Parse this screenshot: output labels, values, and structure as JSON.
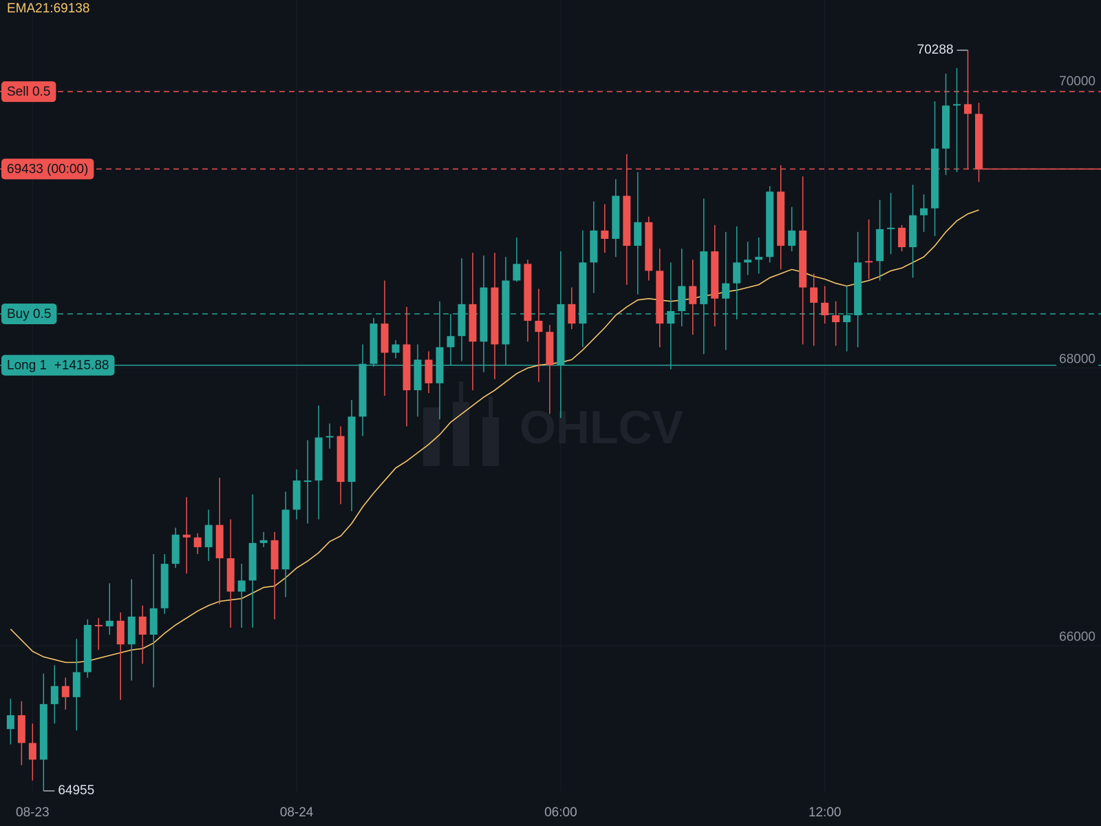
{
  "chart_data": {
    "type": "candlestick",
    "x": [
      0,
      1,
      2,
      3,
      4,
      5,
      6,
      7,
      8,
      9,
      10,
      11,
      12,
      13,
      14,
      15,
      16,
      17,
      18,
      19,
      20,
      21,
      22,
      23,
      24,
      25,
      26,
      27,
      28,
      29,
      30,
      31,
      32,
      33,
      34,
      35,
      36,
      37,
      38,
      39,
      40,
      41,
      42,
      43,
      44,
      45,
      46,
      47,
      48,
      49,
      50,
      51,
      52,
      53,
      54,
      55,
      56,
      57,
      58,
      59,
      60,
      61,
      62,
      63,
      64,
      65,
      66,
      67,
      68,
      69,
      70,
      71,
      72,
      73,
      74,
      75,
      76,
      77,
      78,
      79,
      80,
      81,
      82,
      83,
      84,
      85,
      86,
      87,
      88
    ],
    "open": [
      65400,
      65500,
      65300,
      65180,
      65580,
      65710,
      65630,
      65810,
      66150,
      66140,
      66180,
      66010,
      66210,
      66080,
      66270,
      66590,
      66800,
      66780,
      66710,
      66870,
      66630,
      66390,
      66470,
      66740,
      66760,
      66550,
      66980,
      67180,
      67190,
      67500,
      67510,
      67180,
      67650,
      68030,
      68320,
      68110,
      68170,
      67840,
      68060,
      67890,
      68150,
      68230,
      68460,
      68190,
      68580,
      68170,
      68630,
      68750,
      68340,
      68260,
      68020,
      68460,
      68320,
      68760,
      68990,
      68930,
      69240,
      68880,
      69050,
      68700,
      68320,
      68410,
      68590,
      68460,
      68840,
      68500,
      68610,
      68760,
      68780,
      68800,
      69270,
      68880,
      68990,
      68580,
      68470,
      68380,
      68330,
      68380,
      68770,
      68770,
      69000,
      69010,
      68870,
      69100,
      69150,
      69580,
      69890,
      69900,
      69830
    ],
    "high": [
      65620,
      65600,
      65440,
      65800,
      65860,
      65770,
      66050,
      66190,
      66200,
      66450,
      66240,
      66480,
      66290,
      66660,
      66660,
      66850,
      67070,
      66810,
      66980,
      67210,
      66910,
      66590,
      67090,
      66820,
      66820,
      67110,
      67270,
      67480,
      67730,
      67600,
      67580,
      67770,
      68170,
      68360,
      68630,
      68200,
      68440,
      68170,
      68120,
      68480,
      68390,
      68790,
      68830,
      68810,
      68830,
      68800,
      68940,
      68780,
      68570,
      68310,
      68840,
      68580,
      68990,
      69200,
      69180,
      69360,
      69540,
      69410,
      69090,
      68860,
      68760,
      68860,
      68780,
      69220,
      69030,
      68980,
      69020,
      68910,
      68940,
      69310,
      69460,
      69160,
      69380,
      68680,
      68590,
      68480,
      68590,
      68980,
      69070,
      69210,
      69260,
      69030,
      69320,
      69250,
      69920,
      70120,
      70160,
      70288,
      69910
    ],
    "low": [
      65290,
      65140,
      65030,
      64955,
      65440,
      65540,
      65390,
      65770,
      65970,
      66080,
      65610,
      65750,
      65870,
      65700,
      66230,
      66560,
      66520,
      66660,
      66610,
      66300,
      66130,
      66130,
      66130,
      66710,
      66190,
      66350,
      66910,
      66880,
      66910,
      67420,
      67020,
      66970,
      67510,
      68010,
      67800,
      68070,
      67580,
      67650,
      67820,
      67630,
      68020,
      68050,
      67840,
      67970,
      67920,
      68020,
      68620,
      68190,
      67900,
      67670,
      67640,
      68280,
      68150,
      68540,
      68830,
      68800,
      68600,
      68530,
      68630,
      68150,
      67990,
      68300,
      68240,
      68100,
      68300,
      68130,
      68350,
      68670,
      68680,
      68760,
      68710,
      68840,
      68170,
      68160,
      68320,
      68160,
      68120,
      68150,
      68640,
      68630,
      68820,
      68840,
      68650,
      68980,
      68950,
      69390,
      69410,
      69430,
      69340
    ],
    "close": [
      65500,
      65300,
      65180,
      65580,
      65710,
      65630,
      65810,
      66150,
      66140,
      66180,
      66010,
      66210,
      66080,
      66270,
      66590,
      66800,
      66780,
      66710,
      66870,
      66630,
      66390,
      66470,
      66740,
      66760,
      66550,
      66980,
      67190,
      67190,
      67500,
      67510,
      67180,
      67650,
      68030,
      68320,
      68110,
      68170,
      67840,
      68060,
      67890,
      68150,
      68230,
      68460,
      68190,
      68580,
      68170,
      68630,
      68750,
      68340,
      68260,
      68020,
      68460,
      68320,
      68760,
      68990,
      68930,
      69240,
      68880,
      69050,
      68700,
      68320,
      68410,
      68590,
      68460,
      68840,
      68500,
      68610,
      68760,
      68780,
      68800,
      69270,
      68880,
      68990,
      68580,
      68470,
      68380,
      68330,
      68380,
      68760,
      68760,
      69000,
      69010,
      68870,
      69100,
      69150,
      69580,
      69890,
      69900,
      69830,
      69433
    ],
    "up_color": "#26a69a",
    "down_color": "#ef5350",
    "xlim": [
      -0.96,
      99.1
    ],
    "xticks": [
      {
        "value": 2,
        "label": "08-23"
      },
      {
        "value": 26,
        "label": "08-24"
      },
      {
        "value": 50,
        "label": "06:00"
      },
      {
        "value": 74,
        "label": "12:00"
      }
    ],
    "ylim": [
      64950,
      70650
    ],
    "yticks": [
      66000,
      68000,
      70000
    ],
    "grid": true,
    "last_price_line": true,
    "overlays": [
      {
        "label": "EMA21:69138",
        "color": "#f5c76a",
        "values": [
          66120,
          66040,
          65960,
          65920,
          65900,
          65880,
          65880,
          65890,
          65910,
          65930,
          65950,
          65970,
          65980,
          66020,
          66090,
          66150,
          66200,
          66250,
          66290,
          66320,
          66330,
          66340,
          66380,
          66420,
          66430,
          66490,
          66560,
          66610,
          66670,
          66750,
          66790,
          66880,
          67000,
          67100,
          67190,
          67280,
          67330,
          67390,
          67450,
          67520,
          67610,
          67670,
          67730,
          67790,
          67840,
          67900,
          67960,
          68000,
          68020,
          68030,
          68040,
          68060,
          68130,
          68210,
          68290,
          68380,
          68440,
          68490,
          68500,
          68490,
          68480,
          68490,
          68500,
          68520,
          68530,
          68550,
          68560,
          68580,
          68600,
          68650,
          68680,
          68710,
          68690,
          68660,
          68640,
          68610,
          68590,
          68610,
          68630,
          68660,
          68700,
          68720,
          68760,
          68800,
          68880,
          68980,
          69060,
          69110,
          69138
        ]
      }
    ],
    "price_lines": [
      {
        "label": "Sell 0.5",
        "value": 69990,
        "color": "#ef5350",
        "style": "dashed"
      },
      {
        "label": "69433 (00:00)",
        "value": 69433,
        "color": "#ef5350",
        "style": "dashed"
      },
      {
        "label": "Buy 0.5",
        "value": 68390,
        "color": "#26a69a",
        "style": "dashed"
      },
      {
        "label": "Long 1  +1415.88",
        "value": 68020,
        "color": "#26a69a",
        "style": "solid"
      }
    ],
    "watermark": "OHLCV"
  }
}
